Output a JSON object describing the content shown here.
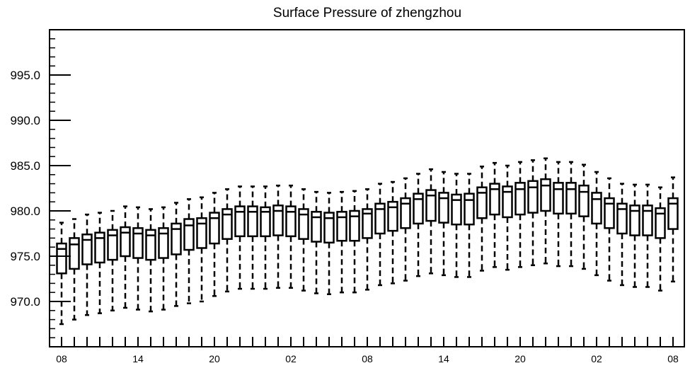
{
  "chart_data": {
    "type": "boxplot",
    "title": "Surface Pressure of zhengzhou",
    "xlabel": "",
    "ylabel": "",
    "ylim": [
      965.0,
      1000.0
    ],
    "yticks": [
      970.0,
      975.0,
      980.0,
      985.0,
      990.0,
      995.0
    ],
    "ytick_labels": [
      "970.0",
      "975.0",
      "980.0",
      "985.0",
      "990.0",
      "995.0"
    ],
    "x_tick_labels": [
      "08",
      "14",
      "20",
      "02",
      "08",
      "14",
      "20",
      "02",
      "08"
    ],
    "x_tick_label_positions": [
      0,
      6,
      12,
      18,
      24,
      30,
      36,
      42,
      48
    ],
    "boxes": [
      {
        "x": 0,
        "whisker_low": 967.5,
        "q1": 973.1,
        "median": 975.8,
        "q3": 976.4,
        "whisker_high": 978.7
      },
      {
        "x": 1,
        "whisker_low": 968.0,
        "q1": 973.6,
        "median": 976.3,
        "q3": 977.0,
        "whisker_high": 979.1
      },
      {
        "x": 2,
        "whisker_low": 968.5,
        "q1": 974.1,
        "median": 976.8,
        "q3": 977.4,
        "whisker_high": 979.6
      },
      {
        "x": 3,
        "whisker_low": 968.7,
        "q1": 974.3,
        "median": 977.0,
        "q3": 977.6,
        "whisker_high": 979.8
      },
      {
        "x": 4,
        "whisker_low": 969.0,
        "q1": 974.6,
        "median": 977.3,
        "q3": 977.9,
        "whisker_high": 980.0
      },
      {
        "x": 5,
        "whisker_low": 969.3,
        "q1": 975.0,
        "median": 977.6,
        "q3": 978.2,
        "whisker_high": 980.5
      },
      {
        "x": 6,
        "whisker_low": 969.1,
        "q1": 974.8,
        "median": 977.5,
        "q3": 978.1,
        "whisker_high": 980.4
      },
      {
        "x": 7,
        "whisker_low": 968.9,
        "q1": 974.6,
        "median": 977.3,
        "q3": 977.9,
        "whisker_high": 980.2
      },
      {
        "x": 8,
        "whisker_low": 969.1,
        "q1": 974.8,
        "median": 977.5,
        "q3": 978.1,
        "whisker_high": 980.4
      },
      {
        "x": 9,
        "whisker_low": 969.5,
        "q1": 975.2,
        "median": 978.0,
        "q3": 978.6,
        "whisker_high": 980.9
      },
      {
        "x": 10,
        "whisker_low": 969.8,
        "q1": 975.7,
        "median": 978.4,
        "q3": 979.1,
        "whisker_high": 981.3
      },
      {
        "x": 11,
        "whisker_low": 970.0,
        "q1": 975.9,
        "median": 978.6,
        "q3": 979.2,
        "whisker_high": 981.5
      },
      {
        "x": 12,
        "whisker_low": 970.6,
        "q1": 976.4,
        "median": 979.2,
        "q3": 979.8,
        "whisker_high": 982.0
      },
      {
        "x": 13,
        "whisker_low": 971.1,
        "q1": 976.9,
        "median": 979.6,
        "q3": 980.2,
        "whisker_high": 982.4
      },
      {
        "x": 14,
        "whisker_low": 971.4,
        "q1": 977.2,
        "median": 979.9,
        "q3": 980.5,
        "whisker_high": 982.7
      },
      {
        "x": 15,
        "whisker_low": 971.4,
        "q1": 977.2,
        "median": 979.9,
        "q3": 980.5,
        "whisker_high": 982.7
      },
      {
        "x": 16,
        "whisker_low": 971.4,
        "q1": 977.2,
        "median": 979.9,
        "q3": 980.4,
        "whisker_high": 982.7
      },
      {
        "x": 17,
        "whisker_low": 971.5,
        "q1": 977.3,
        "median": 980.0,
        "q3": 980.6,
        "whisker_high": 982.8
      },
      {
        "x": 18,
        "whisker_low": 971.5,
        "q1": 977.2,
        "median": 979.9,
        "q3": 980.5,
        "whisker_high": 982.8
      },
      {
        "x": 19,
        "whisker_low": 971.2,
        "q1": 976.9,
        "median": 979.6,
        "q3": 980.2,
        "whisker_high": 982.4
      },
      {
        "x": 20,
        "whisker_low": 970.9,
        "q1": 976.6,
        "median": 979.3,
        "q3": 979.9,
        "whisker_high": 982.1
      },
      {
        "x": 21,
        "whisker_low": 970.8,
        "q1": 976.5,
        "median": 979.2,
        "q3": 979.8,
        "whisker_high": 982.0
      },
      {
        "x": 22,
        "whisker_low": 971.0,
        "q1": 976.7,
        "median": 979.3,
        "q3": 979.9,
        "whisker_high": 982.1
      },
      {
        "x": 23,
        "whisker_low": 971.0,
        "q1": 976.7,
        "median": 979.4,
        "q3": 980.0,
        "whisker_high": 982.2
      },
      {
        "x": 24,
        "whisker_low": 971.3,
        "q1": 977.0,
        "median": 979.7,
        "q3": 980.2,
        "whisker_high": 982.4
      },
      {
        "x": 25,
        "whisker_low": 971.8,
        "q1": 977.5,
        "median": 980.2,
        "q3": 980.8,
        "whisker_high": 983.0
      },
      {
        "x": 26,
        "whisker_low": 972.0,
        "q1": 977.8,
        "median": 980.4,
        "q3": 981.0,
        "whisker_high": 983.2
      },
      {
        "x": 27,
        "whisker_low": 972.3,
        "q1": 978.1,
        "median": 980.8,
        "q3": 981.4,
        "whisker_high": 983.6
      },
      {
        "x": 28,
        "whisker_low": 972.8,
        "q1": 978.6,
        "median": 981.3,
        "q3": 981.9,
        "whisker_high": 984.1
      },
      {
        "x": 29,
        "whisker_low": 973.1,
        "q1": 978.9,
        "median": 981.7,
        "q3": 982.3,
        "whisker_high": 984.6
      },
      {
        "x": 30,
        "whisker_low": 972.9,
        "q1": 978.7,
        "median": 981.4,
        "q3": 982.0,
        "whisker_high": 984.3
      },
      {
        "x": 31,
        "whisker_low": 972.7,
        "q1": 978.5,
        "median": 981.2,
        "q3": 981.8,
        "whisker_high": 984.1
      },
      {
        "x": 32,
        "whisker_low": 972.7,
        "q1": 978.5,
        "median": 981.2,
        "q3": 981.9,
        "whisker_high": 984.1
      },
      {
        "x": 33,
        "whisker_low": 973.4,
        "q1": 979.2,
        "median": 982.0,
        "q3": 982.6,
        "whisker_high": 984.9
      },
      {
        "x": 34,
        "whisker_low": 973.8,
        "q1": 979.6,
        "median": 982.4,
        "q3": 983.0,
        "whisker_high": 985.3
      },
      {
        "x": 35,
        "whisker_low": 973.5,
        "q1": 979.3,
        "median": 982.1,
        "q3": 982.7,
        "whisker_high": 985.0
      },
      {
        "x": 36,
        "whisker_low": 973.8,
        "q1": 979.6,
        "median": 982.4,
        "q3": 983.1,
        "whisker_high": 985.4
      },
      {
        "x": 37,
        "whisker_low": 974.0,
        "q1": 979.8,
        "median": 982.6,
        "q3": 983.3,
        "whisker_high": 985.6
      },
      {
        "x": 38,
        "whisker_low": 974.2,
        "q1": 980.0,
        "median": 982.8,
        "q3": 983.5,
        "whisker_high": 985.8
      },
      {
        "x": 39,
        "whisker_low": 973.9,
        "q1": 979.7,
        "median": 982.4,
        "q3": 983.1,
        "whisker_high": 985.4
      },
      {
        "x": 40,
        "whisker_low": 973.9,
        "q1": 979.7,
        "median": 982.4,
        "q3": 983.1,
        "whisker_high": 985.4
      },
      {
        "x": 41,
        "whisker_low": 973.6,
        "q1": 979.4,
        "median": 982.1,
        "q3": 982.8,
        "whisker_high": 985.1
      },
      {
        "x": 42,
        "whisker_low": 972.9,
        "q1": 978.6,
        "median": 981.3,
        "q3": 982.0,
        "whisker_high": 984.3
      },
      {
        "x": 43,
        "whisker_low": 972.3,
        "q1": 978.1,
        "median": 980.8,
        "q3": 981.4,
        "whisker_high": 983.6
      },
      {
        "x": 44,
        "whisker_low": 971.8,
        "q1": 977.5,
        "median": 980.2,
        "q3": 980.8,
        "whisker_high": 983.0
      },
      {
        "x": 45,
        "whisker_low": 971.6,
        "q1": 977.3,
        "median": 980.0,
        "q3": 980.6,
        "whisker_high": 982.9
      },
      {
        "x": 46,
        "whisker_low": 971.6,
        "q1": 977.3,
        "median": 980.0,
        "q3": 980.6,
        "whisker_high": 982.9
      },
      {
        "x": 47,
        "whisker_low": 971.2,
        "q1": 977.0,
        "median": 979.7,
        "q3": 980.3,
        "whisker_high": 982.6
      },
      {
        "x": 48,
        "whisker_low": 972.2,
        "q1": 978.0,
        "median": 980.8,
        "q3": 981.4,
        "whisker_high": 983.7
      }
    ],
    "grid": false,
    "legend": "none"
  }
}
